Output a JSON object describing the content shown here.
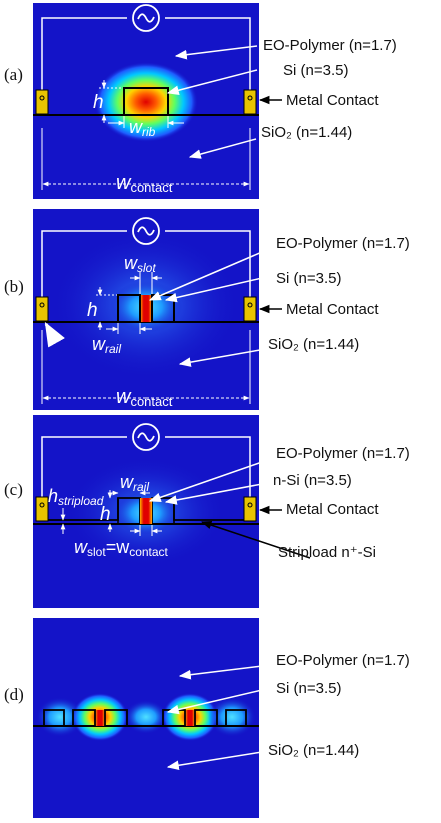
{
  "panels": [
    {
      "id": "a",
      "label": "(a)",
      "annotations": [
        "EO-Polymer (n=1.7)",
        "Si (n=3.5)",
        "Metal Contact",
        "SiO₂ (n=1.44)"
      ],
      "dims": {
        "h": "h",
        "width": "w",
        "width_sub": "rib",
        "contact": "w",
        "contact_sub": "contact"
      }
    },
    {
      "id": "b",
      "label": "(b)",
      "annotations": [
        "EO-Polymer (n=1.7)",
        "Si (n=3.5)",
        "Metal Contact",
        "SiO₂ (n=1.44)"
      ],
      "dims": {
        "h": "h",
        "slot": "w",
        "slot_sub": "slot",
        "rail": "w",
        "rail_sub": "rail",
        "contact": "w",
        "contact_sub": "contact"
      }
    },
    {
      "id": "c",
      "label": "(c)",
      "annotations": [
        "EO-Polymer (n=1.7)",
        "n-Si (n=3.5)",
        "Metal Contact",
        "Stripload n⁺-Si"
      ],
      "dims": {
        "h": "h",
        "stripload": "h",
        "stripload_sub": "stripload",
        "rail": "w",
        "rail_sub": "rail",
        "slot_eq": "w",
        "slot_eq_sub1": "slot",
        "slot_eq_mid": "=w",
        "slot_eq_sub2": "contact"
      }
    },
    {
      "id": "d",
      "label": "(d)",
      "annotations": [
        "EO-Polymer (n=1.7)",
        "Si (n=3.5)",
        "SiO₂ (n=1.44)"
      ]
    }
  ],
  "colors": {
    "field_background": "#1414c8",
    "field_peak": "#e00000",
    "silicon_outline": "#000000",
    "metal_contact": "#e8c400",
    "circuit_wire": "#ffffff"
  },
  "icons": [
    "ac-source-icon",
    "arrow-icon"
  ]
}
